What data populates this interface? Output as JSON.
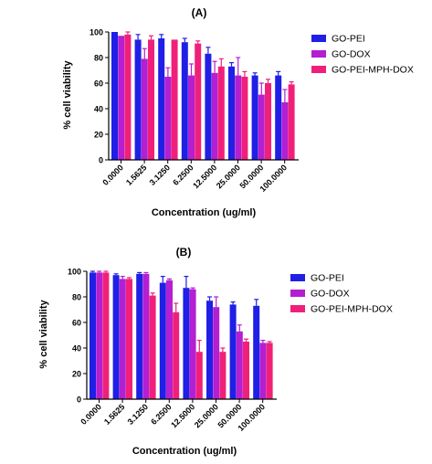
{
  "chart_data": [
    {
      "type": "bar",
      "title": "(A)",
      "xlabel": "Concentration (ug/ml)",
      "ylabel": "% cell viability",
      "ylim": [
        0,
        100
      ],
      "yticks": [
        0,
        20,
        40,
        60,
        80,
        100
      ],
      "legend_position": "right",
      "categories": [
        "0.0000",
        "1.5625",
        "3.1250",
        "6.2500",
        "12.5000",
        "25.0000",
        "50.0000",
        "100.0000"
      ],
      "series": [
        {
          "name": "GO-PEI",
          "color": "#1f1fe6",
          "values": [
            100,
            94,
            95,
            92,
            83,
            73,
            66,
            66
          ],
          "errors": [
            0,
            4,
            3,
            3,
            5,
            3,
            2,
            3
          ]
        },
        {
          "name": "GO-DOX",
          "color": "#b31fd1",
          "values": [
            97,
            79,
            65,
            66,
            68,
            66,
            51,
            45
          ],
          "errors": [
            0,
            8,
            7,
            9,
            9,
            14,
            9,
            10
          ]
        },
        {
          "name": "GO-PEI-MPH-DOX",
          "color": "#f0207a",
          "values": [
            98,
            94,
            94,
            91,
            73,
            65,
            60,
            59
          ],
          "errors": [
            2,
            3,
            0,
            2,
            6,
            4,
            3,
            2
          ]
        }
      ]
    },
    {
      "type": "bar",
      "title": "(B)",
      "xlabel": "Concentration (ug/ml)",
      "ylabel": "% cell viability",
      "ylim": [
        0,
        100
      ],
      "yticks": [
        0,
        20,
        40,
        60,
        80,
        100
      ],
      "legend_position": "right",
      "categories": [
        "0.0000",
        "1.5625",
        "3.1250",
        "6.2500",
        "12.5000",
        "25.0000",
        "50.0000",
        "100.0000"
      ],
      "series": [
        {
          "name": "GO-PEI",
          "color": "#1f1fe6",
          "values": [
            99,
            97,
            98,
            91,
            87,
            77,
            74,
            73
          ],
          "errors": [
            1,
            1,
            1,
            5,
            9,
            3,
            2,
            5
          ]
        },
        {
          "name": "GO-DOX",
          "color": "#b31fd1",
          "values": [
            99,
            94,
            98,
            93,
            86,
            72,
            53,
            44
          ],
          "errors": [
            1,
            2,
            1,
            1,
            1,
            8,
            5,
            2
          ]
        },
        {
          "name": "GO-PEI-MPH-DOX",
          "color": "#f0207a",
          "values": [
            99,
            94,
            81,
            68,
            37,
            37,
            45,
            44
          ],
          "errors": [
            1,
            1,
            2,
            7,
            9,
            3,
            2,
            1
          ]
        }
      ]
    }
  ]
}
